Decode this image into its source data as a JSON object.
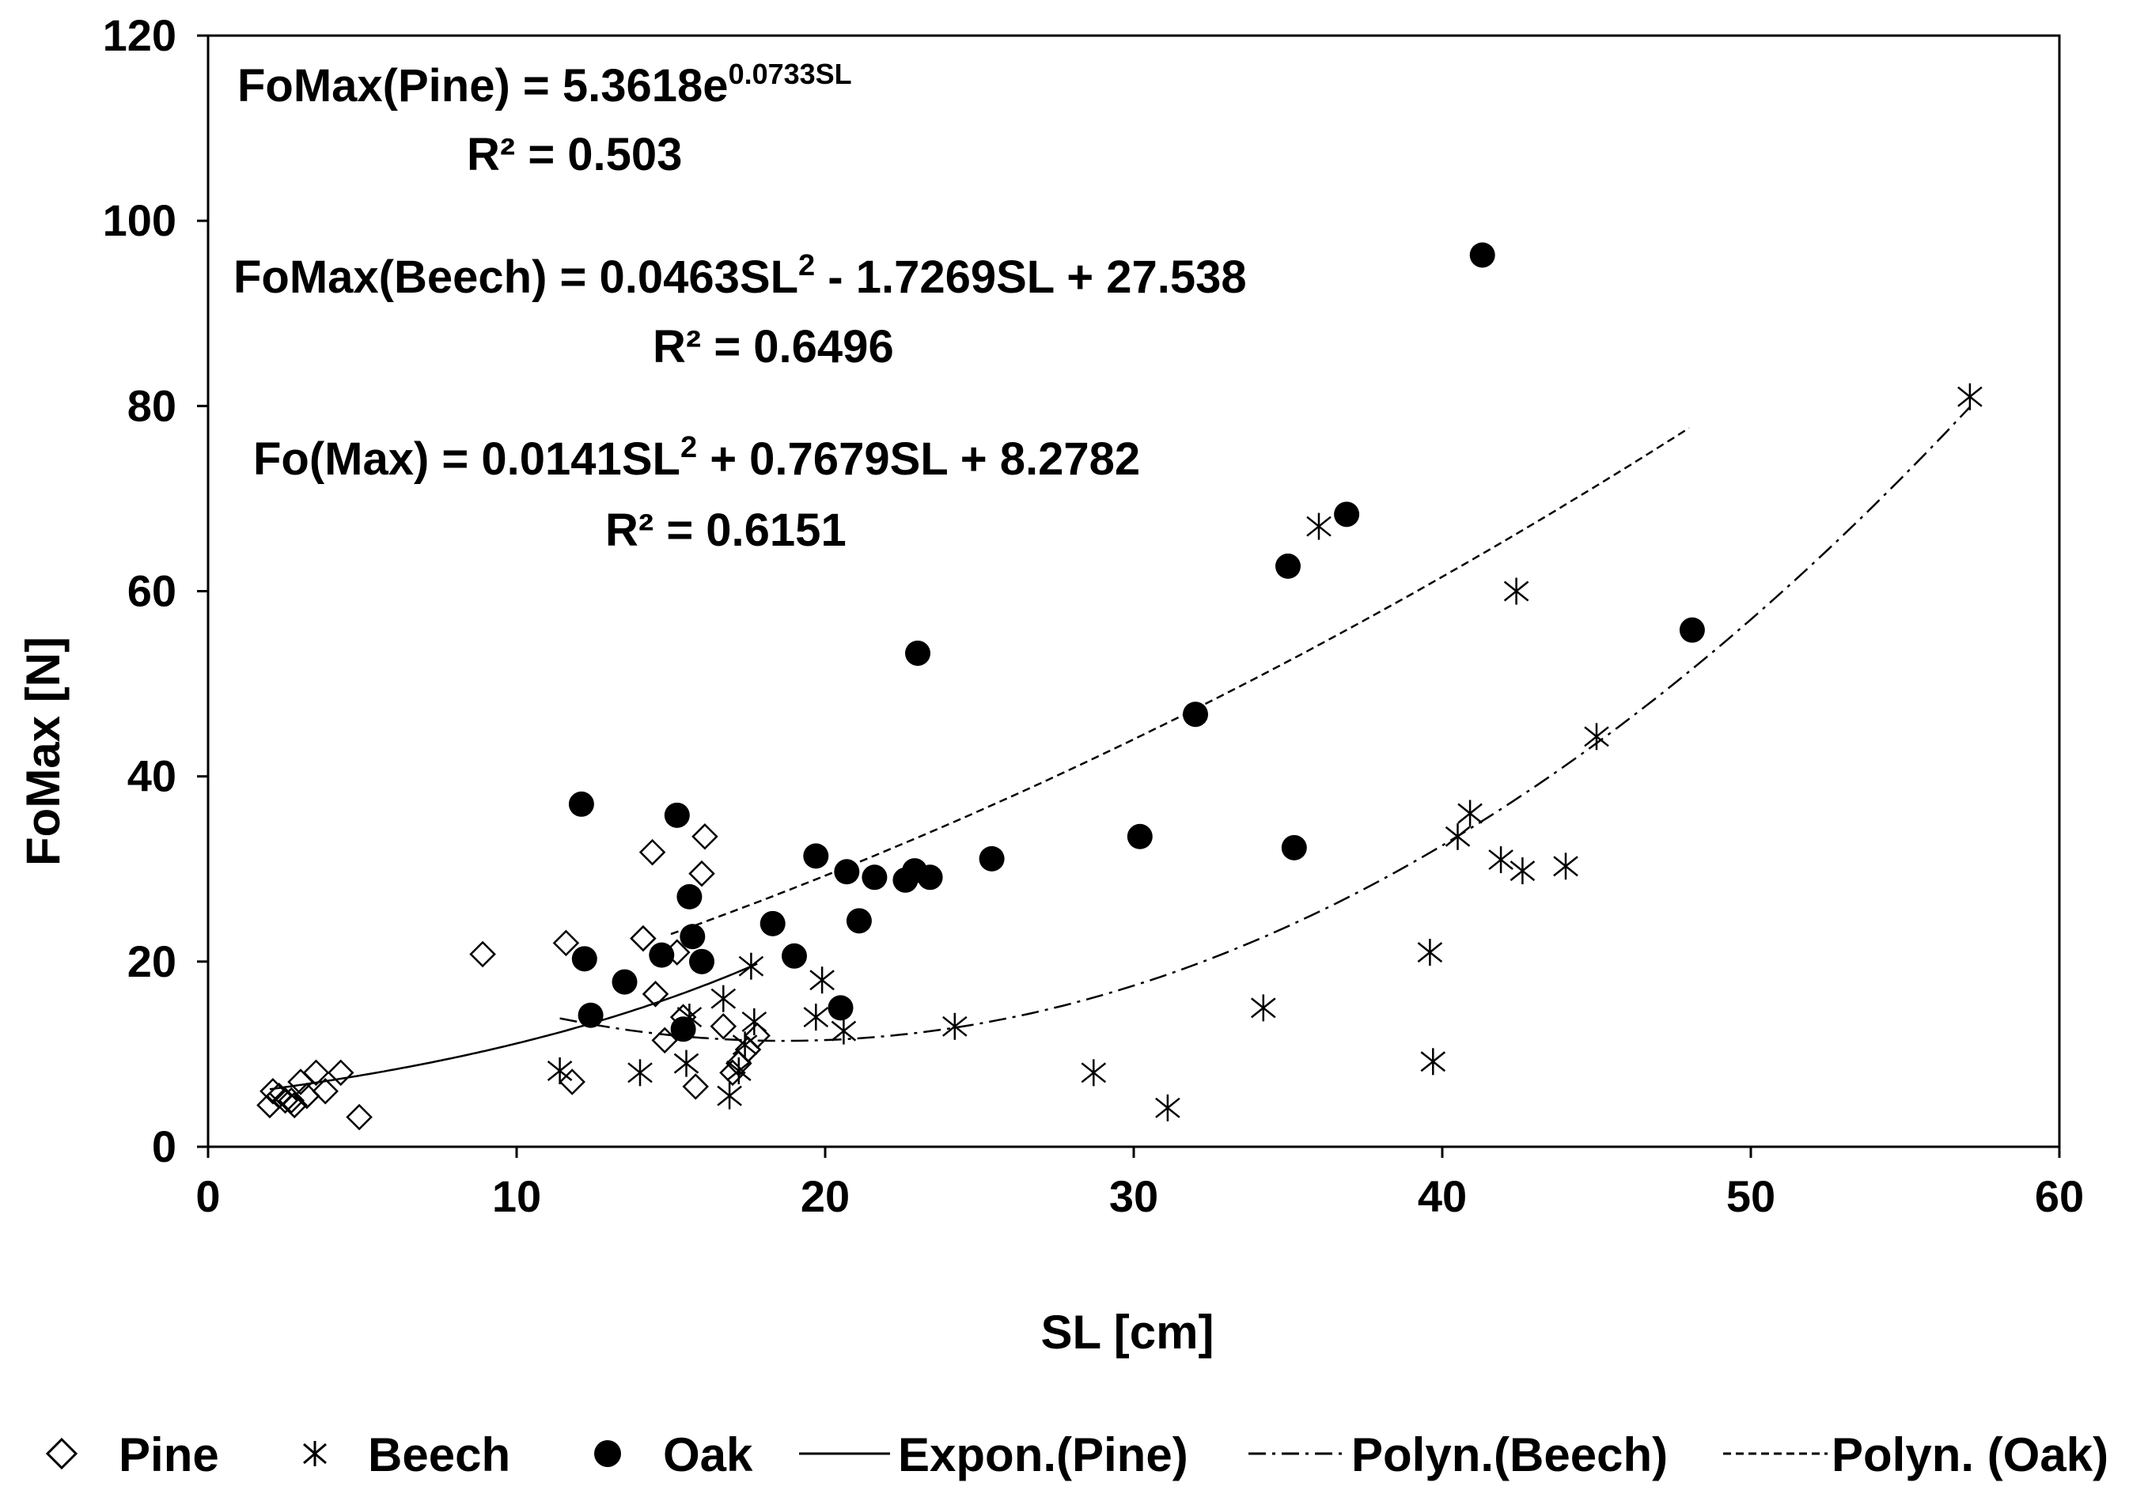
{
  "chart_data": {
    "type": "scatter",
    "title": "",
    "xlabel": "SL [cm]",
    "ylabel": "FoMax [N]",
    "xlim": [
      0,
      60
    ],
    "ylim": [
      0,
      120
    ],
    "xticks": [
      0,
      10,
      20,
      30,
      40,
      50,
      60
    ],
    "yticks": [
      0,
      20,
      40,
      60,
      80,
      100,
      120
    ],
    "grid": false,
    "legend_position": "bottom",
    "series": [
      {
        "name": "Pine",
        "marker": "diamond-open",
        "points": [
          [
            2.0,
            4.5
          ],
          [
            2.1,
            6.0
          ],
          [
            2.3,
            5.5
          ],
          [
            2.5,
            5.0
          ],
          [
            2.7,
            5.0
          ],
          [
            2.8,
            4.5
          ],
          [
            3.0,
            7.0
          ],
          [
            3.2,
            5.5
          ],
          [
            3.5,
            8.0
          ],
          [
            3.8,
            6.0
          ],
          [
            4.3,
            8.0
          ],
          [
            4.9,
            3.2
          ],
          [
            8.9,
            20.8
          ],
          [
            11.6,
            22.0
          ],
          [
            11.8,
            7.0
          ],
          [
            14.1,
            22.5
          ],
          [
            14.4,
            31.8
          ],
          [
            14.5,
            16.5
          ],
          [
            14.8,
            11.5
          ],
          [
            15.2,
            21.0
          ],
          [
            15.4,
            14.0
          ],
          [
            15.8,
            6.5
          ],
          [
            16.0,
            29.5
          ],
          [
            16.1,
            33.5
          ],
          [
            16.7,
            13.0
          ],
          [
            17.0,
            8.0
          ],
          [
            17.2,
            9.0
          ],
          [
            17.5,
            10.5
          ],
          [
            17.8,
            12.0
          ]
        ]
      },
      {
        "name": "Beech",
        "marker": "asterisk",
        "points": [
          [
            11.4,
            8.2
          ],
          [
            14.0,
            8.0
          ],
          [
            15.6,
            14.0
          ],
          [
            15.5,
            9.0
          ],
          [
            16.7,
            16.0
          ],
          [
            16.9,
            5.5
          ],
          [
            17.2,
            8.2
          ],
          [
            17.4,
            11.0
          ],
          [
            17.6,
            19.5
          ],
          [
            17.7,
            13.5
          ],
          [
            19.7,
            14.0
          ],
          [
            19.9,
            18.0
          ],
          [
            20.6,
            12.5
          ],
          [
            24.2,
            13.0
          ],
          [
            28.7,
            8.0
          ],
          [
            31.1,
            4.2
          ],
          [
            34.2,
            15.0
          ],
          [
            36.0,
            67.0
          ],
          [
            39.6,
            21.0
          ],
          [
            39.7,
            9.2
          ],
          [
            40.5,
            33.5
          ],
          [
            40.9,
            36.0
          ],
          [
            41.9,
            31.0
          ],
          [
            42.4,
            60.0
          ],
          [
            42.6,
            29.8
          ],
          [
            44.0,
            30.3
          ],
          [
            45.0,
            44.3
          ],
          [
            57.1,
            81.0
          ]
        ]
      },
      {
        "name": "Oak",
        "marker": "circle-filled",
        "points": [
          [
            12.1,
            37.0
          ],
          [
            12.2,
            20.3
          ],
          [
            12.4,
            14.2
          ],
          [
            13.5,
            17.8
          ],
          [
            14.7,
            20.7
          ],
          [
            15.2,
            35.8
          ],
          [
            15.4,
            12.7
          ],
          [
            15.6,
            27.0
          ],
          [
            15.7,
            22.7
          ],
          [
            16.0,
            20.0
          ],
          [
            18.3,
            24.1
          ],
          [
            19.0,
            20.6
          ],
          [
            19.7,
            31.4
          ],
          [
            20.5,
            15.0
          ],
          [
            20.7,
            29.7
          ],
          [
            21.1,
            24.4
          ],
          [
            21.6,
            29.1
          ],
          [
            22.6,
            28.8
          ],
          [
            22.9,
            29.8
          ],
          [
            23.0,
            53.3
          ],
          [
            23.4,
            29.1
          ],
          [
            25.4,
            31.1
          ],
          [
            30.2,
            33.5
          ],
          [
            32.0,
            46.7
          ],
          [
            35.0,
            62.7
          ],
          [
            35.2,
            32.3
          ],
          [
            36.9,
            68.3
          ],
          [
            41.3,
            96.3
          ],
          [
            48.1,
            55.8
          ]
        ]
      }
    ],
    "trendlines": [
      {
        "name": "Expon.(Pine)",
        "style": "solid",
        "model": "exponential",
        "a": 5.3618,
        "b": 0.0733,
        "x_range": [
          2.0,
          17.8
        ]
      },
      {
        "name": "Polyn.(Beech)",
        "style": "dash-dot",
        "model": "polynomial",
        "c2": 0.0463,
        "c1": -1.7269,
        "c0": 27.538,
        "x_range": [
          11.4,
          57.1
        ]
      },
      {
        "name": "Polyn. (Oak)",
        "style": "dotted",
        "model": "polynomial",
        "c2": 0.0141,
        "c1": 0.7679,
        "c0": 8.2782,
        "x_range": [
          15.0,
          48.0
        ]
      }
    ],
    "annotations": [
      {
        "id": "pine_eq",
        "text": "FoMax(Pine) = 5.3618e",
        "sup": "0.0733SL",
        "r2": "R² = 0.503"
      },
      {
        "id": "beech_eq",
        "text": "FoMax(Beech) = 0.0463SL",
        "sup": "2",
        "tail": " - 1.7269SL + 27.538",
        "r2": "R² = 0.6496"
      },
      {
        "id": "oak_eq",
        "text": "Fo(Max) = 0.0141SL",
        "sup": "2",
        "tail": " + 0.7679SL + 8.2782",
        "r2": "R² = 0.6151"
      }
    ],
    "legend": [
      {
        "label": "Pine",
        "symbol": "diamond-open"
      },
      {
        "label": "Beech",
        "symbol": "asterisk"
      },
      {
        "label": "Oak",
        "symbol": "circle-filled"
      },
      {
        "label": "Expon.(Pine)",
        "symbol": "line-solid"
      },
      {
        "label": "Polyn.(Beech)",
        "symbol": "line-dash-dot"
      },
      {
        "label": "Polyn. (Oak)",
        "symbol": "line-dotted"
      }
    ]
  }
}
